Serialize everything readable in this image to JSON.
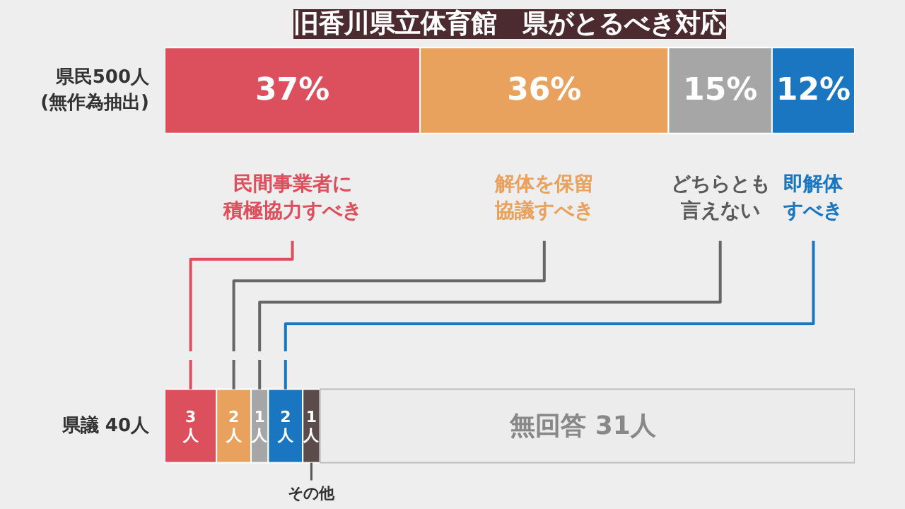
{
  "chart_data": [
    {
      "type": "bar",
      "orientation": "horizontal",
      "stacked": true,
      "title": "旧香川県立体育館　県がとるべき対応",
      "categories": [
        "県民500人\n(無作為抽出)"
      ],
      "xlim": [
        0,
        100
      ],
      "tick_labels": "y",
      "series": [
        {
          "name": "民間事業者に積極協力すべき",
          "color": "#dc4f5c",
          "values": [
            37
          ],
          "value_labels": [
            "37%"
          ]
        },
        {
          "name": "解体を保留協議すべき",
          "color": "#e9a25e",
          "values": [
            36
          ],
          "value_labels": [
            "36%"
          ]
        },
        {
          "name": "どちらとも言えない",
          "color": "#a6a6a6",
          "values": [
            15
          ],
          "value_labels": [
            "15%"
          ]
        },
        {
          "name": "即解体すべき",
          "color": "#1a76c0",
          "values": [
            12
          ],
          "value_labels": [
            "12%"
          ]
        }
      ]
    },
    {
      "type": "bar",
      "orientation": "horizontal",
      "stacked": true,
      "categories": [
        "県議 40人"
      ],
      "xlim": [
        0,
        40
      ],
      "tick_labels": "y",
      "series": [
        {
          "color": "#dc4f5c",
          "values": [
            3
          ],
          "value_labels": [
            "3人"
          ]
        },
        {
          "color": "#e9a25e",
          "values": [
            2
          ],
          "value_labels": [
            "2人"
          ]
        },
        {
          "color": "#a6a6a6",
          "values": [
            1
          ],
          "value_labels": [
            "1人"
          ]
        },
        {
          "color": "#1a76c0",
          "values": [
            2
          ],
          "value_labels": [
            "2人"
          ]
        },
        {
          "name": "その他",
          "color": "#5b4b4b",
          "values": [
            1
          ],
          "value_labels": [
            "1人"
          ]
        },
        {
          "name": "無回答",
          "color": "#ececec",
          "values": [
            31
          ],
          "value_labels": [
            "31人"
          ]
        }
      ]
    }
  ]
}
